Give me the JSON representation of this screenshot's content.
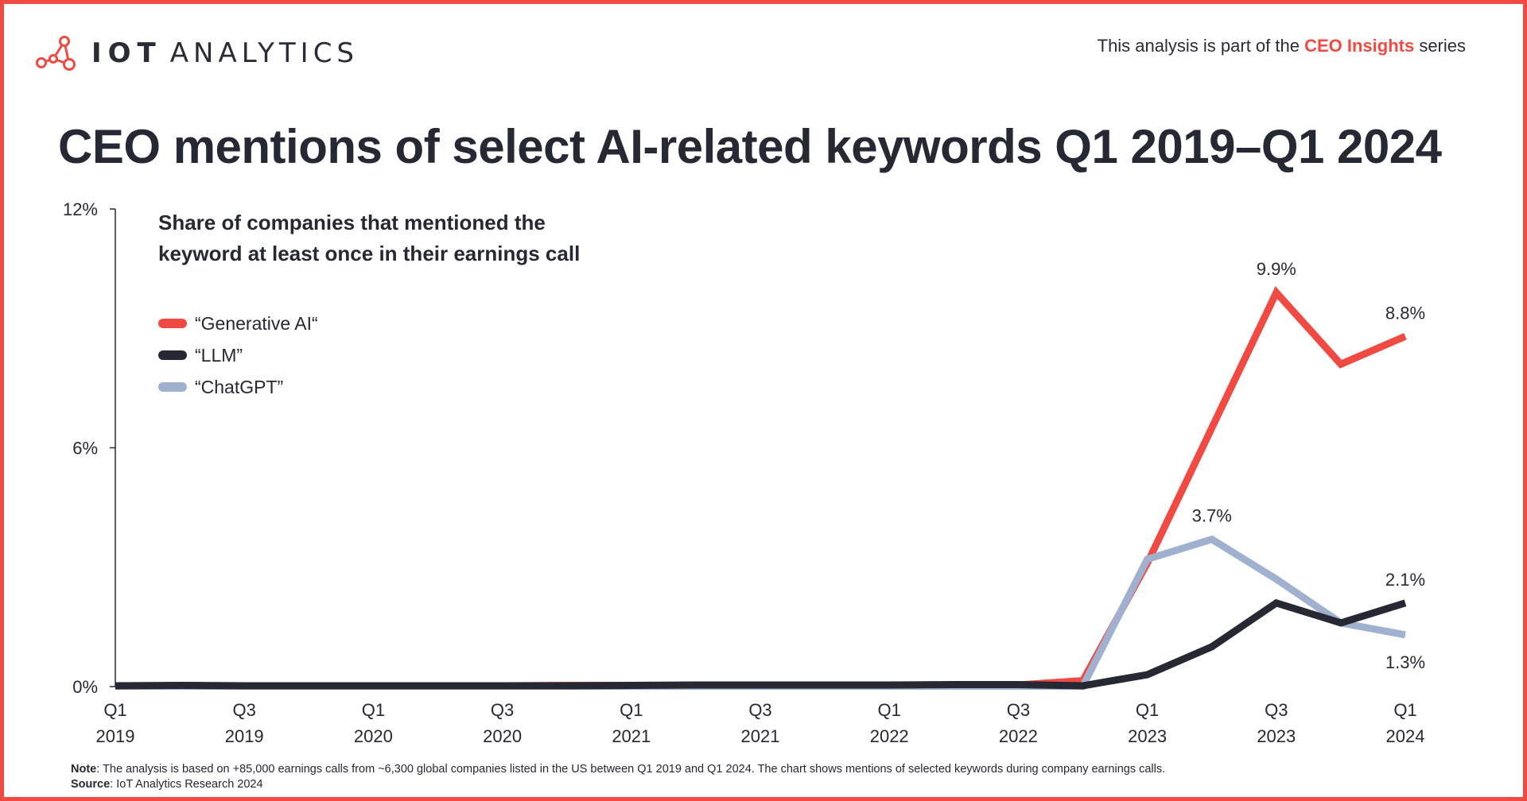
{
  "header": {
    "brand_bold": "IOT",
    "brand_light": "ANALYTICS",
    "series_prefix": "This analysis is part of the ",
    "series_name": "CEO Insights",
    "series_suffix": " series",
    "title": "CEO mentions of select AI-related keywords Q1 2019–Q1 2024"
  },
  "footer": {
    "note_label": "Note",
    "note_text": ": The analysis is based on +85,000 earnings calls from ~6,300 global companies listed in the US between Q1 2019 and Q1 2024. The chart shows mentions of selected keywords during company earnings calls.",
    "source_label": "Source",
    "source_text": ": IoT Analytics Research 2024"
  },
  "colors": {
    "accent": "#f04a42",
    "generative_ai": "#f04a42",
    "llm": "#262833",
    "chatgpt": "#9fb1cf",
    "text": "#262833"
  },
  "chart_data": {
    "type": "line",
    "subtitle": "Share of companies that mentioned the keyword at least once in their earnings call",
    "subtitle_lines": [
      "Share of companies that mentioned the",
      "keyword at least once in their earnings call"
    ],
    "ylim": [
      0,
      12
    ],
    "y_ticks": [
      0,
      6,
      12
    ],
    "y_tick_labels": [
      "0%",
      "6%",
      "12%"
    ],
    "grid": false,
    "legend_position": "top-left",
    "x": [
      "Q1 2019",
      "Q2 2019",
      "Q3 2019",
      "Q4 2019",
      "Q1 2020",
      "Q2 2020",
      "Q3 2020",
      "Q4 2020",
      "Q1 2021",
      "Q2 2021",
      "Q3 2021",
      "Q4 2021",
      "Q1 2022",
      "Q2 2022",
      "Q3 2022",
      "Q4 2022",
      "Q1 2023",
      "Q2 2023",
      "Q3 2023",
      "Q4 2023",
      "Q1 2024"
    ],
    "x_tick_labels": [
      {
        "line1": "Q1",
        "line2": "2019"
      },
      {
        "line1": "Q3",
        "line2": "2019"
      },
      {
        "line1": "Q1",
        "line2": "2020"
      },
      {
        "line1": "Q3",
        "line2": "2020"
      },
      {
        "line1": "Q1",
        "line2": "2021"
      },
      {
        "line1": "Q3",
        "line2": "2021"
      },
      {
        "line1": "Q1",
        "line2": "2022"
      },
      {
        "line1": "Q3",
        "line2": "2022"
      },
      {
        "line1": "Q1",
        "line2": "2023"
      },
      {
        "line1": "Q3",
        "line2": "2023"
      },
      {
        "line1": "Q1",
        "line2": "2024"
      }
    ],
    "series": [
      {
        "name": "“Generative AI“",
        "color": "#f04a42",
        "values": [
          0.02,
          0.02,
          0.01,
          0.01,
          0.01,
          0.01,
          0.02,
          0.03,
          0.03,
          0.03,
          0.04,
          0.04,
          0.03,
          0.03,
          0.04,
          0.15,
          3.1,
          6.5,
          9.9,
          8.1,
          8.8
        ]
      },
      {
        "name": "“LLM”",
        "color": "#262833",
        "values": [
          0.02,
          0.03,
          0.02,
          0.02,
          0.02,
          0.02,
          0.02,
          0.02,
          0.03,
          0.04,
          0.04,
          0.04,
          0.04,
          0.05,
          0.05,
          0.02,
          0.3,
          1.0,
          2.1,
          1.6,
          2.1
        ]
      },
      {
        "name": "“ChatGPT”",
        "color": "#9fb1cf",
        "values": [
          0.01,
          0.01,
          0.01,
          0.01,
          0.01,
          0.01,
          0.01,
          0.01,
          0.01,
          0.01,
          0.01,
          0.01,
          0.01,
          0.01,
          0.01,
          0.01,
          3.2,
          3.7,
          2.7,
          1.6,
          1.3
        ]
      }
    ],
    "annotations": [
      {
        "series": 0,
        "index": 18,
        "label": "9.9%",
        "position": "above"
      },
      {
        "series": 0,
        "index": 20,
        "label": "8.8%",
        "position": "above"
      },
      {
        "series": 2,
        "index": 17,
        "label": "3.7%",
        "position": "above"
      },
      {
        "series": 1,
        "index": 20,
        "label": "2.1%",
        "position": "above"
      },
      {
        "series": 2,
        "index": 20,
        "label": "1.3%",
        "position": "below"
      }
    ]
  }
}
